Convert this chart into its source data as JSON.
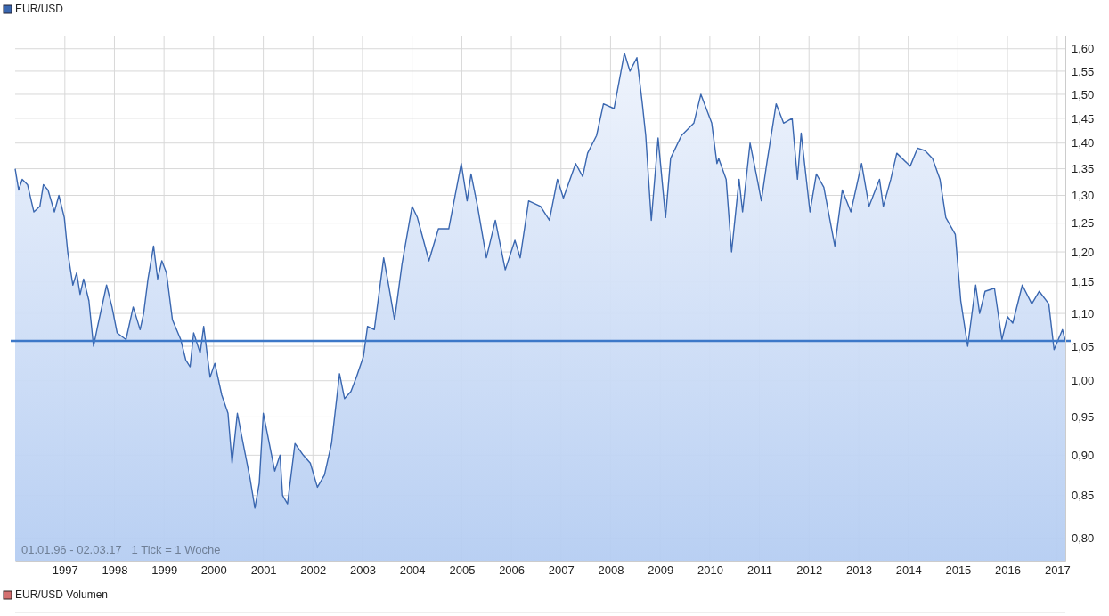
{
  "chart_data": {
    "type": "area",
    "log": true,
    "grid": true,
    "legend": "top left",
    "xlim": [
      "1996-01-01",
      "2017-03-02"
    ],
    "xticks": [
      {
        "value": "1997-01-01",
        "label": "1997"
      },
      {
        "value": "1998-01-01",
        "label": "1998"
      },
      {
        "value": "1999-01-01",
        "label": "1999"
      },
      {
        "value": "2000-01-01",
        "label": "2000"
      },
      {
        "value": "2001-01-01",
        "label": "2001"
      },
      {
        "value": "2002-01-01",
        "label": "2002"
      },
      {
        "value": "2003-01-01",
        "label": "2003"
      },
      {
        "value": "2004-01-01",
        "label": "2004"
      },
      {
        "value": "2005-01-01",
        "label": "2005"
      },
      {
        "value": "2006-01-01",
        "label": "2006"
      },
      {
        "value": "2007-01-01",
        "label": "2007"
      },
      {
        "value": "2008-01-01",
        "label": "2008"
      },
      {
        "value": "2009-01-01",
        "label": "2009"
      },
      {
        "value": "2010-01-01",
        "label": "2010"
      },
      {
        "value": "2011-01-01",
        "label": "2011"
      },
      {
        "value": "2012-01-01",
        "label": "2012"
      },
      {
        "value": "2013-01-01",
        "label": "2013"
      },
      {
        "value": "2014-01-01",
        "label": "2014"
      },
      {
        "value": "2015-01-01",
        "label": "2015"
      },
      {
        "value": "2016-01-01",
        "label": "2016"
      },
      {
        "value": "2017-01-01",
        "label": "2017"
      }
    ],
    "ylim": [
      0.775,
      1.63
    ],
    "yticks": [
      {
        "value": 0.8,
        "label": "0,80"
      },
      {
        "value": 0.85,
        "label": "0,85"
      },
      {
        "value": 0.9,
        "label": "0,90"
      },
      {
        "value": 0.95,
        "label": "0,95"
      },
      {
        "value": 1.0,
        "label": "1,00"
      },
      {
        "value": 1.05,
        "label": "1,05"
      },
      {
        "value": 1.1,
        "label": "1,10"
      },
      {
        "value": 1.15,
        "label": "1,15"
      },
      {
        "value": 1.2,
        "label": "1,20"
      },
      {
        "value": 1.25,
        "label": "1,25"
      },
      {
        "value": 1.3,
        "label": "1,30"
      },
      {
        "value": 1.35,
        "label": "1,35"
      },
      {
        "value": 1.4,
        "label": "1,40"
      },
      {
        "value": 1.45,
        "label": "1,45"
      },
      {
        "value": 1.5,
        "label": "1,50"
      },
      {
        "value": 1.55,
        "label": "1,55"
      },
      {
        "value": 1.6,
        "label": "1,60"
      }
    ],
    "ref_lines": [
      {
        "axis": "y",
        "value": 1.058,
        "color": "#3d78c8"
      }
    ],
    "annotations": [
      "01.01.96 - 02.03.17   1 Tick = 1 Woche",
      "EUR/USD Volumen"
    ],
    "series": [
      {
        "name": "EUR/USD",
        "color": "#3a67b0",
        "x": [
          "1996-01-01",
          "1996-01-27",
          "1996-02-22",
          "1996-04-01",
          "1996-05-18",
          "1996-07-01",
          "1996-07-27",
          "1996-08-30",
          "1996-10-16",
          "1996-11-18",
          "1996-12-28",
          "1997-01-22",
          "1997-03-01",
          "1997-03-29",
          "1997-04-23",
          "1997-05-19",
          "1997-06-27",
          "1997-07-31",
          "1997-08-30",
          "1997-11-04",
          "1997-12-14",
          "1998-01-21",
          "1998-03-27",
          "1998-05-19",
          "1998-07-09",
          "1998-08-04",
          "1998-09-05",
          "1998-10-16",
          "1998-11-15",
          "1998-12-16",
          "1999-01-19",
          "1999-03-04",
          "1999-05-04",
          "1999-06-10",
          "1999-07-12",
          "1999-08-07",
          "1999-09-24",
          "1999-10-20",
          "1999-12-06",
          "2000-01-10",
          "2000-03-01",
          "2000-04-16",
          "2000-05-16",
          "2000-06-24",
          "2000-07-31",
          "2000-09-26",
          "2000-10-31",
          "2000-12-02",
          "2001-01-01",
          "2001-02-03",
          "2001-03-26",
          "2001-05-04",
          "2001-05-23",
          "2001-06-28",
          "2001-08-22",
          "2001-10-22",
          "2001-12-13",
          "2002-02-03",
          "2002-03-27",
          "2002-05-18",
          "2002-07-16",
          "2002-08-22",
          "2002-10-08",
          "2002-11-17",
          "2003-01-08",
          "2003-02-07",
          "2003-03-29",
          "2003-06-06",
          "2003-07-16",
          "2003-08-25",
          "2003-10-19",
          "2004-01-01",
          "2004-02-09",
          "2004-05-04",
          "2004-07-13",
          "2004-09-27",
          "2004-12-28",
          "2005-02-09",
          "2005-03-10",
          "2005-04-27",
          "2005-07-01",
          "2005-09-05",
          "2005-11-17",
          "2006-01-27",
          "2006-03-07",
          "2006-05-08",
          "2006-08-04",
          "2006-10-08",
          "2006-12-06",
          "2007-01-19",
          "2007-04-19",
          "2007-06-10",
          "2007-07-16",
          "2007-09-20",
          "2007-11-10",
          "2008-01-27",
          "2008-04-12",
          "2008-05-23",
          "2008-07-13",
          "2008-08-22",
          "2008-09-16",
          "2008-10-27",
          "2008-12-16",
          "2009-02-09",
          "2009-03-18",
          "2009-06-06",
          "2009-09-05",
          "2009-10-27",
          "2010-01-15",
          "2010-02-22",
          "2010-03-07",
          "2010-05-01",
          "2010-06-10",
          "2010-08-04",
          "2010-08-30",
          "2010-10-24",
          "2010-12-16",
          "2011-01-15",
          "2011-02-24",
          "2011-05-04",
          "2011-06-28",
          "2011-08-30",
          "2011-10-08",
          "2011-11-04",
          "2012-01-08",
          "2012-02-24",
          "2012-04-19",
          "2012-07-09",
          "2012-09-02",
          "2012-11-04",
          "2013-01-22",
          "2013-03-18",
          "2013-06-03",
          "2013-07-01",
          "2013-08-25",
          "2013-10-08",
          "2014-01-15",
          "2014-03-10",
          "2014-05-04",
          "2014-06-28",
          "2014-08-22",
          "2014-10-04",
          "2014-12-13",
          "2015-01-22",
          "2015-03-14",
          "2015-05-12",
          "2015-06-10",
          "2015-07-20",
          "2015-09-27",
          "2015-11-21",
          "2016-01-01",
          "2016-02-09",
          "2016-04-19",
          "2016-06-28",
          "2016-08-22",
          "2016-10-31",
          "2016-12-09",
          "2017-02-09",
          "2017-03-02"
        ],
        "values": [
          1.35,
          1.31,
          1.33,
          1.32,
          1.27,
          1.28,
          1.32,
          1.31,
          1.27,
          1.3,
          1.26,
          1.2,
          1.145,
          1.165,
          1.13,
          1.155,
          1.12,
          1.05,
          1.08,
          1.145,
          1.11,
          1.07,
          1.06,
          1.11,
          1.075,
          1.1,
          1.155,
          1.21,
          1.155,
          1.185,
          1.165,
          1.09,
          1.06,
          1.03,
          1.02,
          1.07,
          1.04,
          1.08,
          1.005,
          1.025,
          0.98,
          0.955,
          0.89,
          0.955,
          0.92,
          0.87,
          0.835,
          0.865,
          0.955,
          0.925,
          0.88,
          0.9,
          0.85,
          0.84,
          0.915,
          0.9,
          0.89,
          0.86,
          0.875,
          0.915,
          1.01,
          0.975,
          0.985,
          1.005,
          1.035,
          1.08,
          1.075,
          1.19,
          1.14,
          1.09,
          1.18,
          1.28,
          1.26,
          1.185,
          1.24,
          1.24,
          1.36,
          1.29,
          1.34,
          1.28,
          1.19,
          1.255,
          1.17,
          1.22,
          1.19,
          1.29,
          1.28,
          1.255,
          1.33,
          1.295,
          1.36,
          1.335,
          1.38,
          1.415,
          1.48,
          1.47,
          1.59,
          1.55,
          1.58,
          1.48,
          1.415,
          1.255,
          1.41,
          1.26,
          1.37,
          1.415,
          1.44,
          1.5,
          1.44,
          1.36,
          1.37,
          1.33,
          1.2,
          1.33,
          1.27,
          1.4,
          1.33,
          1.29,
          1.36,
          1.48,
          1.44,
          1.45,
          1.33,
          1.42,
          1.27,
          1.34,
          1.315,
          1.21,
          1.31,
          1.27,
          1.36,
          1.28,
          1.33,
          1.28,
          1.33,
          1.38,
          1.355,
          1.39,
          1.385,
          1.37,
          1.33,
          1.26,
          1.23,
          1.12,
          1.05,
          1.145,
          1.1,
          1.135,
          1.14,
          1.06,
          1.095,
          1.085,
          1.145,
          1.115,
          1.135,
          1.115,
          1.045,
          1.075,
          1.058
        ]
      }
    ]
  }
}
